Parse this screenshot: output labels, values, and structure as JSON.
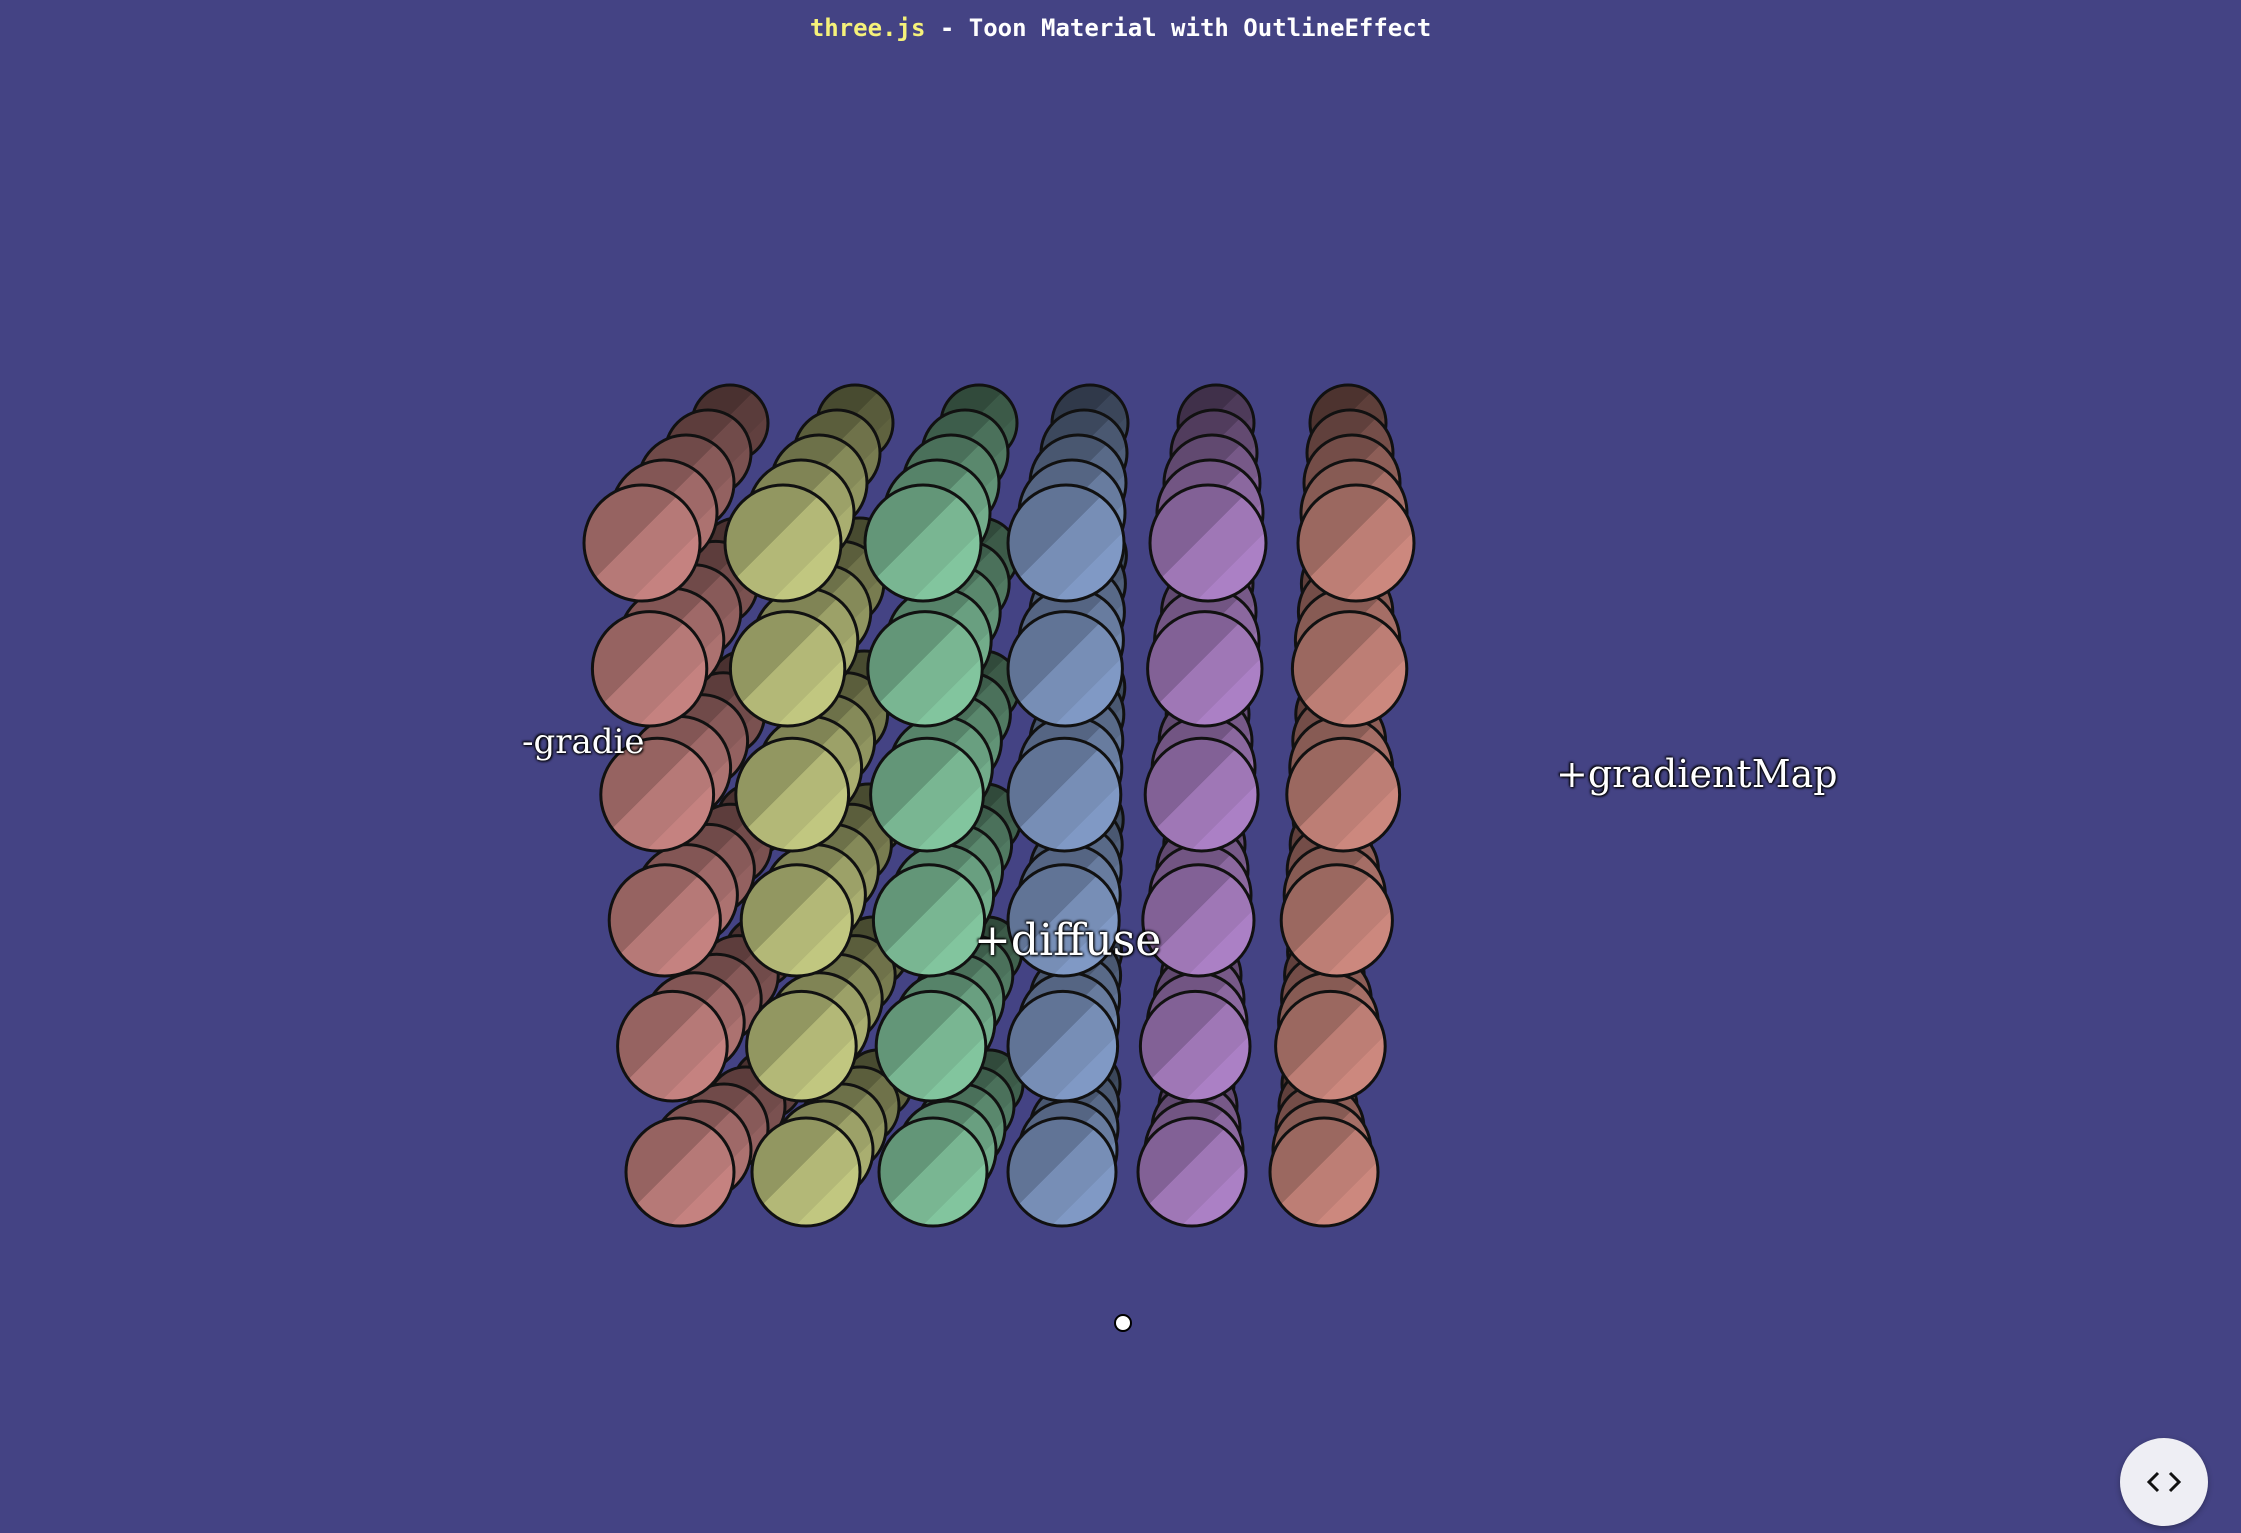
{
  "header": {
    "link_text": "three.js",
    "title_text": " - Toon Material with OutlineEffect"
  },
  "labels": {
    "gradient_negative": "-gradie",
    "gradient_positive": "+gradientMap",
    "diffuse": "+diffuse"
  },
  "colors": {
    "background": "#444384",
    "link": "#f5f17a",
    "sphere_columns": [
      "#c07f7d",
      "#bcc27d",
      "#7fc09a",
      "#7d95c0",
      "#a77dc0",
      "#c7857b"
    ]
  },
  "icons": {
    "view_source": "code-brackets-icon"
  }
}
